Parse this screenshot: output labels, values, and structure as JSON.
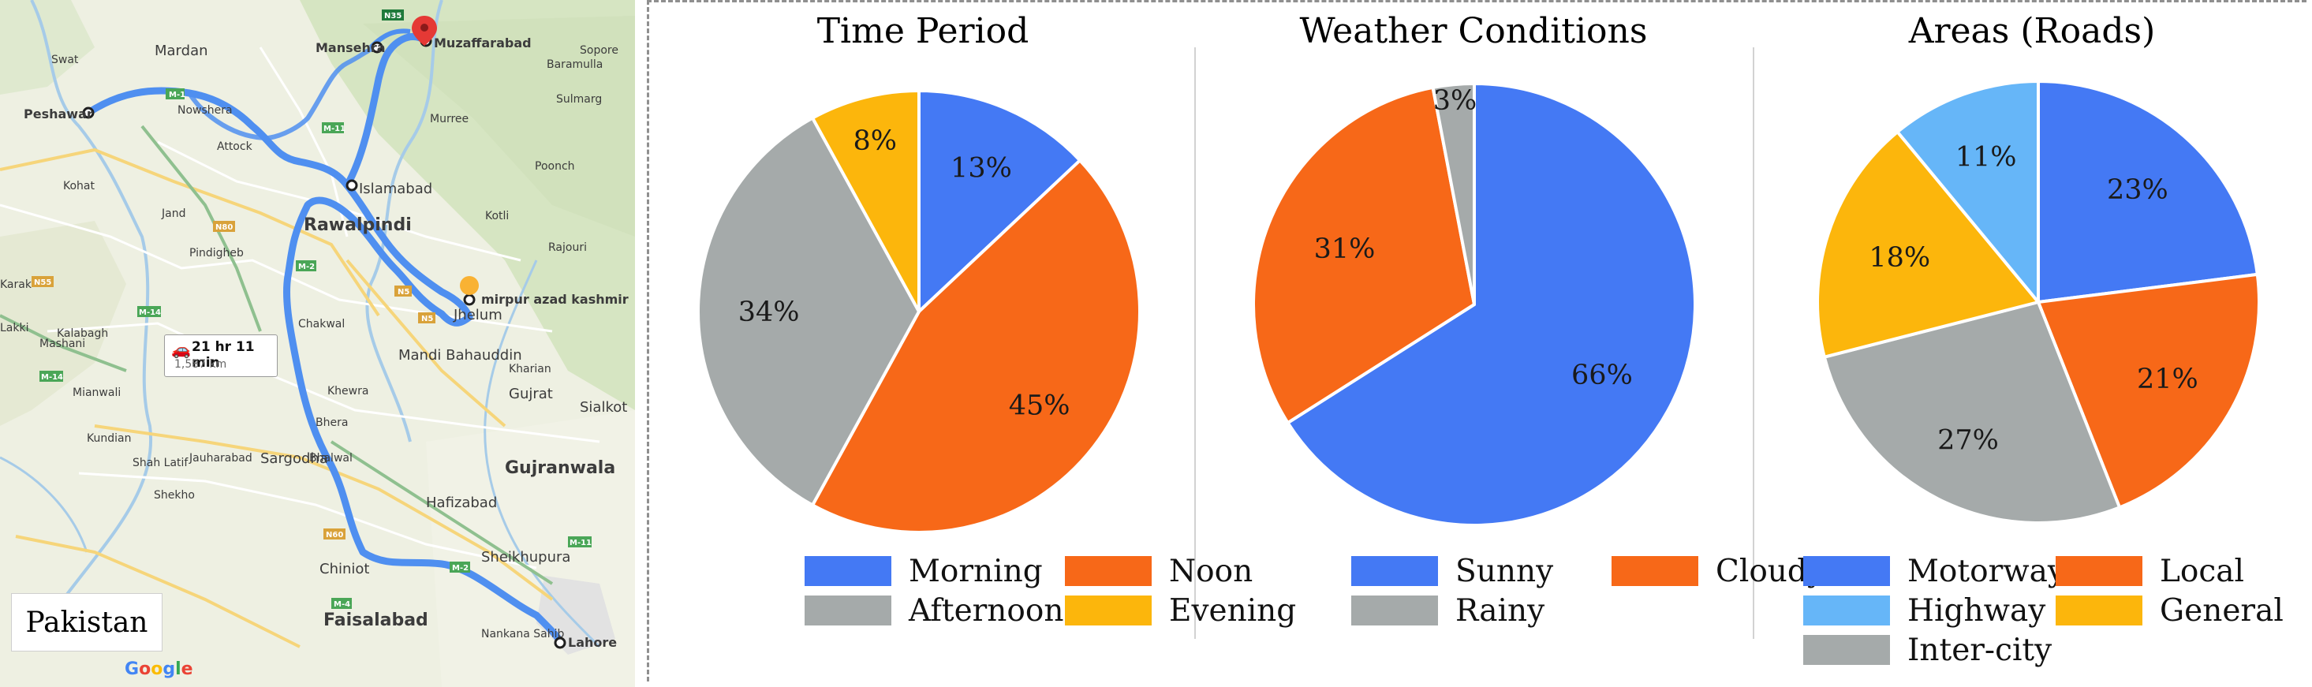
{
  "map": {
    "country_label": "Pakistan",
    "watermark": "Google",
    "route_info": {
      "duration": "21 hr 11 min",
      "distance": "1,587 km",
      "icon": "car-icon"
    },
    "places": [
      {
        "name": "Peshawar",
        "kind": "stop"
      },
      {
        "name": "Mardan",
        "kind": "town"
      },
      {
        "name": "Mansehra",
        "kind": "stop"
      },
      {
        "name": "Muzaffarabad",
        "kind": "stop"
      },
      {
        "name": "Islamabad",
        "kind": "stop"
      },
      {
        "name": "Rawalpindi",
        "kind": "city"
      },
      {
        "name": "Jhelum",
        "kind": "stop"
      },
      {
        "name": "mirpur azad kashmir",
        "kind": "stop"
      },
      {
        "name": "Mandi Bahauddin",
        "kind": "town"
      },
      {
        "name": "Gujrat",
        "kind": "town"
      },
      {
        "name": "Sialkot",
        "kind": "town"
      },
      {
        "name": "Gujranwala",
        "kind": "city"
      },
      {
        "name": "Sargodha",
        "kind": "town"
      },
      {
        "name": "Hafizabad",
        "kind": "town"
      },
      {
        "name": "Chiniot",
        "kind": "town"
      },
      {
        "name": "Sheikhupura",
        "kind": "town"
      },
      {
        "name": "Faisalabad",
        "kind": "city"
      },
      {
        "name": "Lahore",
        "kind": "stop"
      },
      {
        "name": "Kohat",
        "kind": "minor"
      },
      {
        "name": "Attock",
        "kind": "minor"
      },
      {
        "name": "Murree",
        "kind": "minor"
      },
      {
        "name": "Kotli",
        "kind": "minor"
      },
      {
        "name": "Rajouri",
        "kind": "minor"
      },
      {
        "name": "Poonch",
        "kind": "minor"
      },
      {
        "name": "Sopore",
        "kind": "minor"
      },
      {
        "name": "Baramulla",
        "kind": "minor"
      },
      {
        "name": "Sulmarg",
        "kind": "minor"
      },
      {
        "name": "Chakwal",
        "kind": "minor"
      },
      {
        "name": "Khewra",
        "kind": "minor"
      },
      {
        "name": "Bhera",
        "kind": "minor"
      },
      {
        "name": "Bhalwal",
        "kind": "minor"
      },
      {
        "name": "Mianwali",
        "kind": "minor"
      },
      {
        "name": "Kundian",
        "kind": "minor"
      },
      {
        "name": "Jauharabad",
        "kind": "minor"
      },
      {
        "name": "Shah Latif",
        "kind": "minor"
      },
      {
        "name": "Shekho",
        "kind": "minor"
      },
      {
        "name": "Kalabagh",
        "kind": "minor"
      },
      {
        "name": "Pindigheb",
        "kind": "minor"
      },
      {
        "name": "Jand",
        "kind": "minor"
      },
      {
        "name": "Karak",
        "kind": "minor"
      },
      {
        "name": "Lakki",
        "kind": "minor"
      },
      {
        "name": "Mashani",
        "kind": "minor"
      },
      {
        "name": "Kharian",
        "kind": "minor"
      },
      {
        "name": "Nankana Sahib",
        "kind": "minor"
      },
      {
        "name": "Nowshera",
        "kind": "minor"
      },
      {
        "name": "Swat",
        "kind": "minor"
      }
    ],
    "road_shields": [
      "M-1",
      "N35",
      "N5",
      "M-14",
      "N80",
      "N55",
      "M-2",
      "M-11",
      "N60",
      "M-4"
    ]
  },
  "chart_data": [
    {
      "type": "pie",
      "title": "Time Period",
      "categories": [
        "Morning",
        "Noon",
        "Afternoon",
        "Evening"
      ],
      "values": [
        13,
        45,
        34,
        8
      ],
      "labels": [
        "13%",
        "45%",
        "34%",
        "8%"
      ],
      "colors": [
        "#4479f4",
        "#f76818",
        "#a5aaaa",
        "#fcb60c"
      ],
      "legend": {
        "placement": "bottom",
        "order": [
          "Morning",
          "Noon",
          "Afternoon",
          "Evening"
        ]
      }
    },
    {
      "type": "pie",
      "title": "Weather Conditions",
      "categories": [
        "Sunny",
        "Cloudy",
        "Rainy"
      ],
      "values": [
        66,
        31,
        3
      ],
      "labels": [
        "66%",
        "31%",
        "3%"
      ],
      "colors": [
        "#4479f4",
        "#f76818",
        "#a5aaaa"
      ],
      "legend": {
        "placement": "bottom",
        "order": [
          "Sunny",
          "Cloudy",
          "Rainy"
        ]
      }
    },
    {
      "type": "pie",
      "title": "Areas (Roads)",
      "categories": [
        "Motorway",
        "Local",
        "Inter-city",
        "General",
        "Highway"
      ],
      "values": [
        23,
        21,
        27,
        18,
        11
      ],
      "labels": [
        "23%",
        "21%",
        "27%",
        "18%",
        "11%"
      ],
      "colors": [
        "#4479f4",
        "#f76818",
        "#a5aaaa",
        "#fcb60c",
        "#66b6f8"
      ],
      "legend": {
        "placement": "bottom",
        "order": [
          "Motorway",
          "Local",
          "Highway",
          "General",
          "Inter-city"
        ]
      }
    }
  ]
}
